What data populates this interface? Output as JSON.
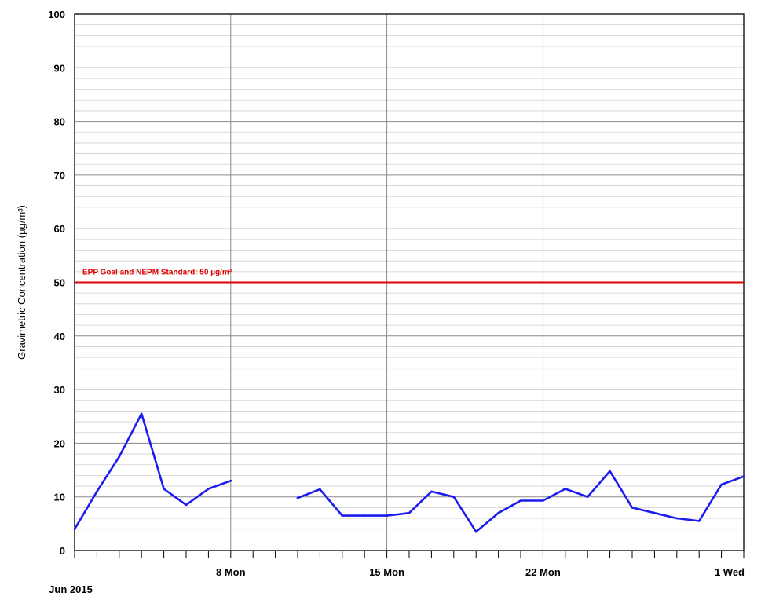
{
  "chart_data": {
    "type": "line",
    "ylabel": "Gravimetric Concentration (µg/m³)",
    "ylim": [
      0,
      100
    ],
    "y_ticks": [
      0,
      10,
      20,
      30,
      40,
      50,
      60,
      70,
      80,
      90,
      100
    ],
    "xlim": [
      "2015-06-01",
      "2015-07-01"
    ],
    "x_ticks": [
      {
        "date": "2015-06-08",
        "label": "8 Mon"
      },
      {
        "date": "2015-06-15",
        "label": "15 Mon"
      },
      {
        "date": "2015-06-22",
        "label": "22 Mon"
      },
      {
        "date": "2015-07-01",
        "label": "1 Wed"
      }
    ],
    "x_sublabel": "Jun 2015",
    "grid": true,
    "reference_line": {
      "value": 50,
      "label": "EPP Goal and NEPM Standard: 50 µg/m³",
      "color": "#e00000"
    },
    "series": [
      {
        "color": "#1c1cf0",
        "segments": [
          [
            {
              "x": "2015-06-01",
              "y": 4
            },
            {
              "x": "2015-06-02",
              "y": 11
            },
            {
              "x": "2015-06-03",
              "y": 17.5
            },
            {
              "x": "2015-06-04",
              "y": 25.5
            },
            {
              "x": "2015-06-05",
              "y": 11.5
            },
            {
              "x": "2015-06-06",
              "y": 8.5
            },
            {
              "x": "2015-06-07",
              "y": 11.5
            },
            {
              "x": "2015-06-08",
              "y": 13
            }
          ],
          [
            {
              "x": "2015-06-11",
              "y": 9.8
            },
            {
              "x": "2015-06-12",
              "y": 11.4
            },
            {
              "x": "2015-06-13",
              "y": 6.5
            },
            {
              "x": "2015-06-14",
              "y": 6.5
            },
            {
              "x": "2015-06-15",
              "y": 6.5
            },
            {
              "x": "2015-06-16",
              "y": 7
            },
            {
              "x": "2015-06-17",
              "y": 11
            },
            {
              "x": "2015-06-18",
              "y": 10
            },
            {
              "x": "2015-06-19",
              "y": 3.5
            },
            {
              "x": "2015-06-20",
              "y": 7
            },
            {
              "x": "2015-06-21",
              "y": 9.3
            },
            {
              "x": "2015-06-22",
              "y": 9.3
            },
            {
              "x": "2015-06-23",
              "y": 11.5
            },
            {
              "x": "2015-06-24",
              "y": 10
            },
            {
              "x": "2015-06-25",
              "y": 14.8
            },
            {
              "x": "2015-06-26",
              "y": 8
            },
            {
              "x": "2015-06-27",
              "y": 7
            },
            {
              "x": "2015-06-28",
              "y": 6
            },
            {
              "x": "2015-06-29",
              "y": 5.5
            },
            {
              "x": "2015-06-30",
              "y": 12.3
            },
            {
              "x": "2015-07-01",
              "y": 13.8
            }
          ]
        ]
      }
    ]
  }
}
